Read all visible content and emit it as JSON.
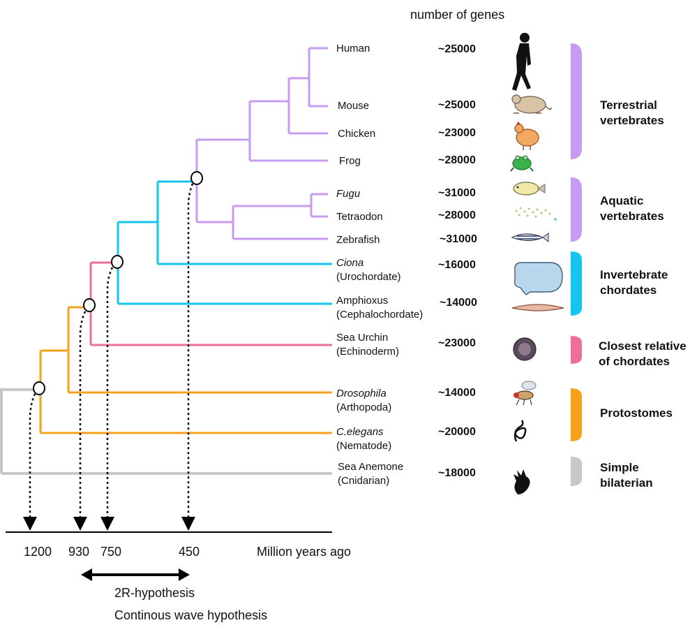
{
  "header": {
    "genes_title": "number of genes"
  },
  "taxa": [
    {
      "name": "Human",
      "italic": false,
      "sub": "",
      "genes": "~25000",
      "icon": "human-silhouette-icon"
    },
    {
      "name": "Mouse",
      "italic": false,
      "sub": "",
      "genes": "~25000",
      "icon": "mouse-icon"
    },
    {
      "name": "Chicken",
      "italic": false,
      "sub": "",
      "genes": "~23000",
      "icon": "chicken-icon"
    },
    {
      "name": "Frog",
      "italic": false,
      "sub": "",
      "genes": "~28000",
      "icon": "frog-icon"
    },
    {
      "name": "Fugu",
      "italic": true,
      "sub": "",
      "genes": "~31000",
      "icon": "pufferfish-icon"
    },
    {
      "name": "Tetraodon",
      "italic": false,
      "sub": "",
      "genes": "~28000",
      "icon": "tetraodon-icon"
    },
    {
      "name": "Zebrafish",
      "italic": false,
      "sub": "",
      "genes": "~31000",
      "icon": "zebrafish-icon"
    },
    {
      "name": "Ciona",
      "italic": true,
      "sub": "(Urochordate)",
      "genes": "~16000",
      "icon": "ciona-icon"
    },
    {
      "name": "Amphioxus",
      "italic": false,
      "sub": "(Cephalochordate)",
      "genes": "~14000",
      "icon": "amphioxus-icon"
    },
    {
      "name": "Sea Urchin",
      "italic": false,
      "sub": "(Echinoderm)",
      "genes": "~23000",
      "icon": "sea-urchin-icon"
    },
    {
      "name": "Drosophila",
      "italic": true,
      "sub": "(Arthopoda)",
      "genes": "~14000",
      "icon": "fly-icon"
    },
    {
      "name": "C.elegans",
      "italic": true,
      "sub": "(Nematode)",
      "genes": "~20000",
      "icon": "nematode-icon"
    },
    {
      "name": "Sea Anemone",
      "italic": false,
      "sub": "(Cnidarian)",
      "genes": "~18000",
      "icon": "sea-anemone-icon"
    }
  ],
  "groups": [
    {
      "line1": "Terrestrial",
      "line2": "vertebrates",
      "color": "#c59cf0"
    },
    {
      "line1": "Aquatic",
      "line2": "vertebrates",
      "color": "#c59cf0"
    },
    {
      "line1": "Invertebrate",
      "line2": "chordates",
      "color": "#14c6ee"
    },
    {
      "line1": "Closest relative",
      "line2": "of chordates",
      "color": "#ee6f9b"
    },
    {
      "line1": "Protostomes",
      "line2": "",
      "color": "#f7a01c"
    },
    {
      "line1": "Simple",
      "line2": "bilaterian",
      "color": "#c8c8c8"
    }
  ],
  "timeline": {
    "ticks": [
      "1200",
      "930",
      "750",
      "450"
    ],
    "unit": "Million years ago",
    "arrow_label": "2R-hypothesis",
    "alt_label": "Continous wave hypothesis"
  },
  "colors": {
    "vertebrate": "#c59cf0",
    "chordate": "#14c6ee",
    "deuterostome": "#ee6f9b",
    "bilaterian": "#f7a01c",
    "outgroup": "#c8c8c8"
  }
}
